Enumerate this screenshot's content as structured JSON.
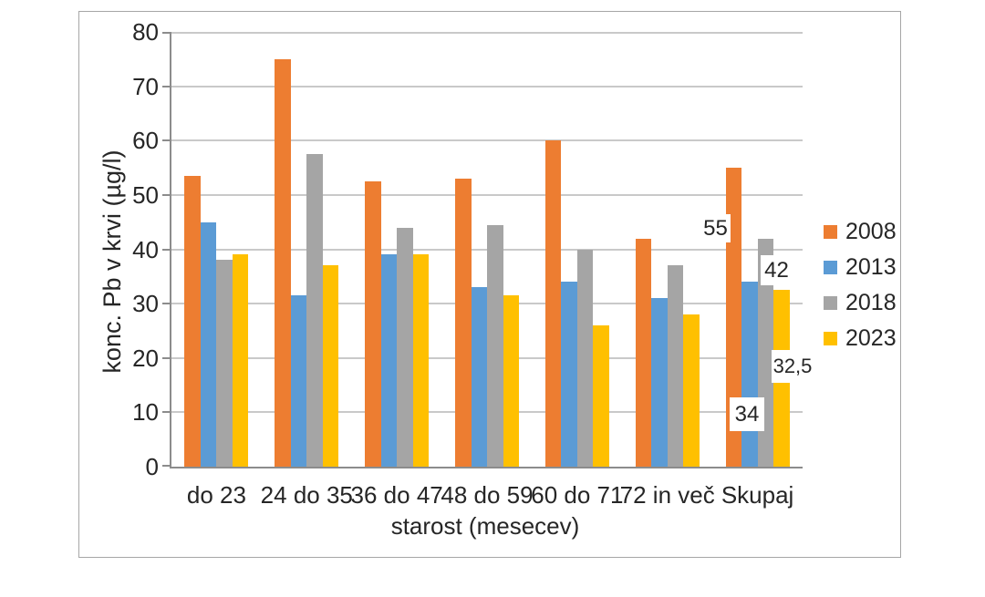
{
  "chart_data": {
    "type": "bar",
    "title": "",
    "categories": [
      "do 23",
      "24 do 35",
      "36 do 47",
      "48 do 59",
      "60 do 71",
      "72 in več",
      "Skupaj"
    ],
    "series": [
      {
        "name": "2008",
        "color": "#ED7D31",
        "values": [
          53.5,
          75,
          52.5,
          53,
          60,
          42,
          55
        ]
      },
      {
        "name": "2013",
        "color": "#5B9BD5",
        "values": [
          45,
          31.5,
          39,
          33,
          34,
          31,
          34
        ]
      },
      {
        "name": "2018",
        "color": "#A5A5A5",
        "values": [
          38,
          57.5,
          44,
          44.5,
          40,
          37,
          42
        ]
      },
      {
        "name": "2023",
        "color": "#FFC000",
        "values": [
          39,
          37,
          39,
          31.5,
          26,
          28,
          32.5
        ]
      }
    ],
    "xlabel": "starost (mesecev)",
    "ylabel": "konc. Pb v krvi (µg/l)",
    "ylim": [
      0,
      80
    ],
    "ytick_step": 10,
    "grid": true,
    "legend_position": "right",
    "legend_items": [
      "2008",
      "2013",
      "2018",
      "2023"
    ],
    "data_labels": [
      {
        "series": "2008",
        "category": "Skupaj",
        "text": "55"
      },
      {
        "series": "2013",
        "category": "Skupaj",
        "text": "34"
      },
      {
        "series": "2018",
        "category": "Skupaj",
        "text": "42"
      },
      {
        "series": "2023",
        "category": "Skupaj",
        "text": "32,5"
      }
    ]
  },
  "colors": {
    "text": "#262626",
    "grid": "#c9c9c9",
    "axis": "#8c8c8c",
    "frame": "#a6a6a6",
    "background": "#ffffff"
  }
}
